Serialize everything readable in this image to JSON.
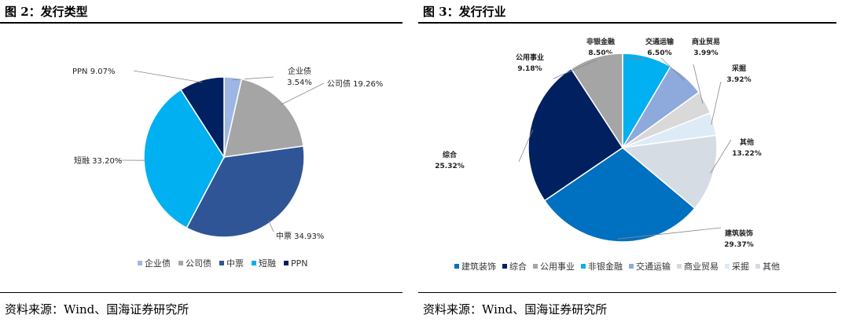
{
  "chart_data": [
    {
      "type": "pie",
      "title": "图 2：发行类型",
      "source": "资料来源：Wind、国海证券研究所",
      "legend_position": "bottom",
      "slices": [
        {
          "name": "企业债",
          "value": 3.54,
          "label": "3.54%",
          "color": "#9DB6E4"
        },
        {
          "name": "公司债",
          "value": 19.26,
          "label": "19.26%",
          "color": "#A5A5A5"
        },
        {
          "name": "中票",
          "value": 34.93,
          "label": "34.93%",
          "color": "#2F5597"
        },
        {
          "name": "短融",
          "value": 33.2,
          "label": "33.20%",
          "color": "#00B0F0"
        },
        {
          "name": "PPN",
          "value": 9.07,
          "label": "9.07%",
          "color": "#002060"
        }
      ]
    },
    {
      "type": "pie",
      "title": "图 3：发行行业",
      "source": "资料来源：Wind、国海证券研究所",
      "legend_position": "bottom",
      "slices": [
        {
          "name": "非银金融",
          "value": 8.5,
          "label": "8.50%",
          "color": "#00B0F0"
        },
        {
          "name": "交通运输",
          "value": 6.5,
          "label": "6.50%",
          "color": "#8EA9DB"
        },
        {
          "name": "商业贸易",
          "value": 3.99,
          "label": "3.99%",
          "color": "#D9D9D9"
        },
        {
          "name": "采掘",
          "value": 3.92,
          "label": "3.92%",
          "color": "#DDEBF7"
        },
        {
          "name": "其他",
          "value": 13.22,
          "label": "13.22%",
          "color": "#D6DCE4"
        },
        {
          "name": "建筑装饰",
          "value": 29.37,
          "label": "29.37%",
          "color": "#0070C0"
        },
        {
          "name": "综合",
          "value": 25.32,
          "label": "25.32%",
          "color": "#002060"
        },
        {
          "name": "公用事业",
          "value": 9.18,
          "label": "9.18%",
          "color": "#A5A5A5"
        }
      ],
      "legend_order": [
        "建筑装饰",
        "综合",
        "公用事业",
        "非银金融",
        "交通运输",
        "商业贸易",
        "采掘",
        "其他"
      ]
    }
  ]
}
